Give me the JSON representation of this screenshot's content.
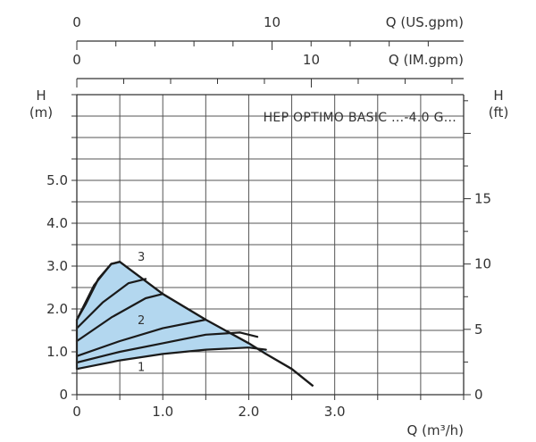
{
  "chart_data": {
    "type": "line",
    "title": "HEP OPTIMO BASIC ...-4.0 G...",
    "xlabel": "Q (m³/h)",
    "ylabel_left": "H\n(m)",
    "ylabel_right": "H\n(ft)",
    "xlim": [
      0,
      4.5
    ],
    "ylim": [
      0,
      7
    ],
    "x_ticks": [
      {
        "value": 0,
        "label": "0"
      },
      {
        "value": 1,
        "label": "1.0"
      },
      {
        "value": 2,
        "label": "2.0"
      },
      {
        "value": 3,
        "label": "3.0"
      }
    ],
    "y_ticks": [
      {
        "value": 0,
        "label": "0"
      },
      {
        "value": 1,
        "label": "1.0"
      },
      {
        "value": 2,
        "label": "2.0"
      },
      {
        "value": 3,
        "label": "3.0"
      },
      {
        "value": 4,
        "label": "4.0"
      },
      {
        "value": 5,
        "label": "5.0"
      }
    ],
    "ft_ticks": [
      {
        "value": 0,
        "label": "0"
      },
      {
        "value": 5,
        "label": "5"
      },
      {
        "value": 10,
        "label": "10"
      },
      {
        "value": 15,
        "label": "15"
      }
    ],
    "top_axes": [
      {
        "name": "Q (US.gpm)",
        "unit_per_m3h": 4.403,
        "ticks": [
          {
            "value": 0,
            "label": "0"
          },
          {
            "value": 10,
            "label": "10"
          }
        ]
      },
      {
        "name": "Q (IM.gpm)",
        "unit_per_m3h": 3.666,
        "ticks": [
          {
            "value": 0,
            "label": "0"
          },
          {
            "value": 10,
            "label": "10"
          }
        ]
      }
    ],
    "series": [
      {
        "label": "1",
        "x": [
          0,
          0.5,
          1.0,
          1.5,
          2.0,
          2.2
        ],
        "y": [
          0.6,
          0.8,
          0.95,
          1.05,
          1.1,
          1.05
        ]
      },
      {
        "x": [
          0,
          0.5,
          1.0,
          1.5,
          1.9,
          2.1
        ],
        "y": [
          0.75,
          1.0,
          1.2,
          1.4,
          1.45,
          1.35
        ]
      },
      {
        "label": "2",
        "x": [
          0,
          0.5,
          1.0,
          1.5
        ],
        "y": [
          0.9,
          1.25,
          1.55,
          1.75
        ]
      },
      {
        "x": [
          0,
          0.4,
          0.8,
          1.0
        ],
        "y": [
          1.25,
          1.8,
          2.25,
          2.35
        ]
      },
      {
        "x": [
          0,
          0.3,
          0.6,
          0.8
        ],
        "y": [
          1.55,
          2.15,
          2.6,
          2.7
        ]
      },
      {
        "label": "3",
        "x": [
          0,
          0.2,
          0.4,
          0.5
        ],
        "y": [
          1.75,
          2.55,
          3.05,
          3.1
        ]
      }
    ],
    "envelope": {
      "x": [
        0,
        0.1,
        0.25,
        0.4,
        0.5,
        0.6,
        0.8,
        1.0,
        1.5,
        2.0,
        2.2,
        2.5,
        2.75
      ],
      "y": [
        1.75,
        2.1,
        2.7,
        3.05,
        3.1,
        2.95,
        2.65,
        2.35,
        1.75,
        1.2,
        0.95,
        0.6,
        0.2
      ]
    },
    "grid": true,
    "fill_color": "#b3d7ef",
    "line_color": "#1a1a1a",
    "grid_color": "#555555"
  }
}
